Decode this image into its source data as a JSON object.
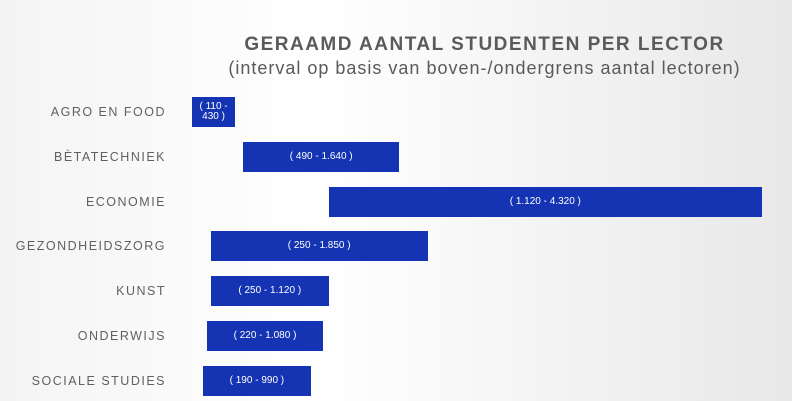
{
  "chart_data": {
    "type": "range_bar",
    "title": "GERAAMD AANTAL STUDENTEN PER LECTOR",
    "subtitle": "(interval op basis van boven-/ondergrens aantal lectoren)",
    "categories": [
      "AGRO EN FOOD",
      "BÈTATECHNIEK",
      "ECONOMIE",
      "GEZONDHEIDSZORG",
      "KUNST",
      "ONDERWIJS",
      "SOCIALE STUDIES"
    ],
    "low": [
      110,
      490,
      1120,
      250,
      250,
      220,
      190
    ],
    "high": [
      430,
      1640,
      4320,
      1850,
      1120,
      1080,
      990
    ],
    "value_labels": [
      "( 110 - 430 )",
      "( 490 - 1.640 )",
      "( 1.120 - 4.320 )",
      "( 250 - 1.850 )",
      "( 250 - 1.120 )",
      "( 220 - 1.080 )",
      "( 190 - 990 )"
    ],
    "color": "#1434b4"
  }
}
